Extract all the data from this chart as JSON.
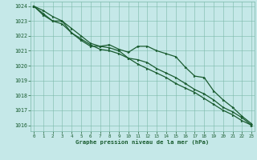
{
  "xlabel": "Graphe pression niveau de la mer (hPa)",
  "bg_color": "#c5e8e8",
  "grid_color": "#7ab8a8",
  "line_color": "#1a5c30",
  "xlim": [
    -0.3,
    23.3
  ],
  "ylim": [
    1015.6,
    1024.3
  ],
  "yticks": [
    1016,
    1017,
    1018,
    1019,
    1020,
    1021,
    1022,
    1023,
    1024
  ],
  "xticks": [
    0,
    1,
    2,
    3,
    4,
    5,
    6,
    7,
    8,
    9,
    10,
    11,
    12,
    13,
    14,
    15,
    16,
    17,
    18,
    19,
    20,
    21,
    22,
    23
  ],
  "series1": [
    1024.0,
    1023.7,
    1023.3,
    1023.0,
    1022.2,
    1021.7,
    1021.3,
    1021.3,
    1021.4,
    1021.1,
    1020.9,
    1021.3,
    1021.3,
    1021.0,
    1020.8,
    1020.6,
    1019.9,
    1019.3,
    1019.2,
    1018.3,
    1017.7,
    1017.2,
    1016.6,
    1016.1
  ],
  "series2": [
    1024.0,
    1023.5,
    1023.0,
    1023.0,
    1022.5,
    1022.0,
    1021.5,
    1021.3,
    1021.2,
    1021.0,
    1020.5,
    1020.4,
    1020.2,
    1019.8,
    1019.5,
    1019.2,
    1018.8,
    1018.4,
    1018.1,
    1017.7,
    1017.2,
    1016.9,
    1016.5,
    1016.0
  ],
  "series3": [
    1024.0,
    1023.4,
    1023.0,
    1022.8,
    1022.2,
    1021.8,
    1021.4,
    1021.1,
    1021.0,
    1020.8,
    1020.5,
    1020.1,
    1019.8,
    1019.5,
    1019.2,
    1018.8,
    1018.5,
    1018.2,
    1017.8,
    1017.4,
    1017.0,
    1016.7,
    1016.3,
    1016.0
  ]
}
